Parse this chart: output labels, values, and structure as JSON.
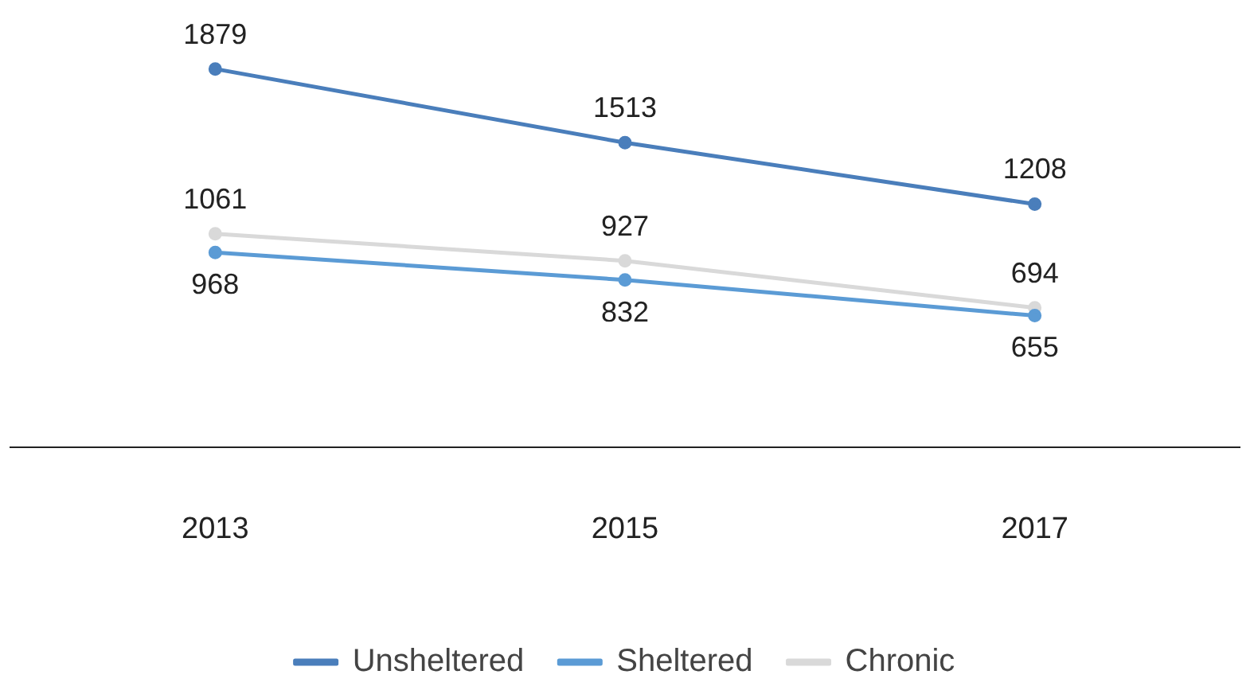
{
  "chart_data": {
    "type": "line",
    "categories": [
      "2013",
      "2015",
      "2017"
    ],
    "series": [
      {
        "name": "Unsheltered",
        "color": "#4a7ebb",
        "values": [
          1879,
          1513,
          1208
        ]
      },
      {
        "name": "Sheltered",
        "color": "#5b9bd5",
        "values": [
          968,
          832,
          655
        ]
      },
      {
        "name": "Chronic",
        "color": "#d9d9d9",
        "values": [
          1061,
          927,
          694
        ]
      }
    ],
    "tick_labels": "x",
    "data_labels": true,
    "legend": "bottom",
    "marker": "circle",
    "line_style": "solid",
    "grid": false
  }
}
